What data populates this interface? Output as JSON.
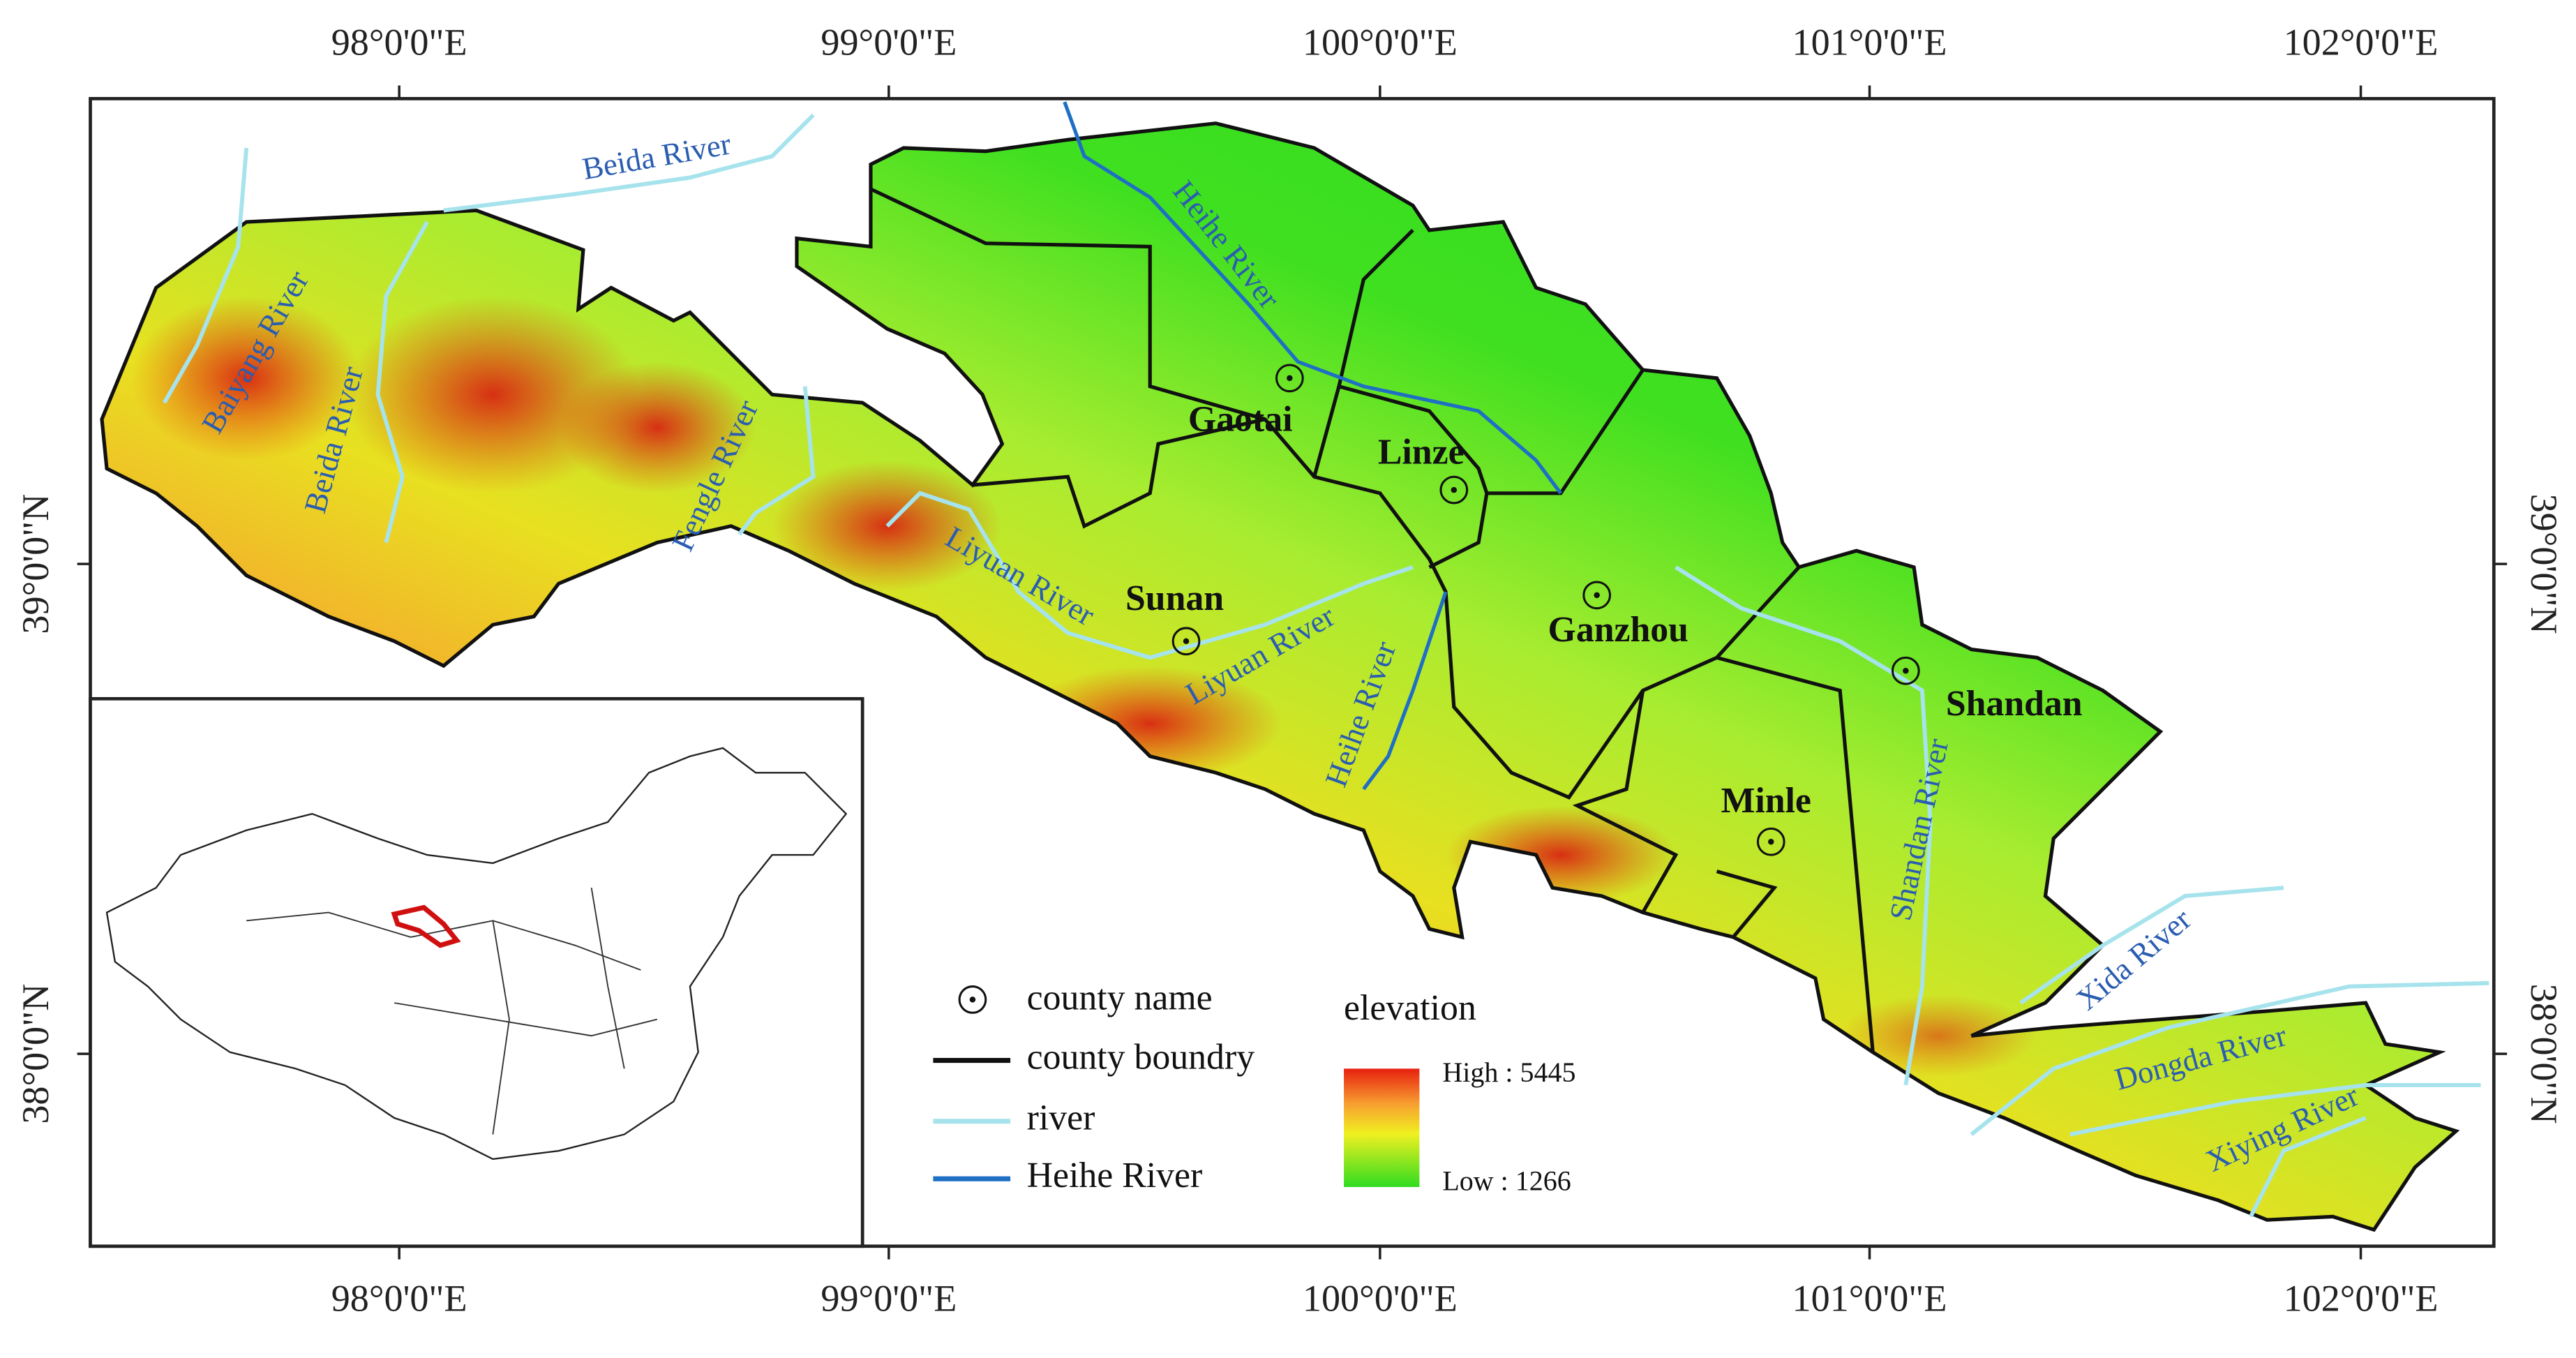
{
  "axes": {
    "longitude": [
      "98°0'0\"E",
      "99°0'0\"E",
      "100°0'0\"E",
      "101°0'0\"E",
      "102°0'0\"E"
    ],
    "latitude": [
      "39°0'0\"N",
      "38°0'0\"N"
    ]
  },
  "counties": [
    "Gaotai",
    "Linze",
    "Sunan",
    "Ganzhou",
    "Shandan",
    "Minle"
  ],
  "rivers": [
    "Beida River",
    "Baiyang River",
    "Beida River",
    "Fengle River",
    "Heihe River",
    "Liyuan River",
    "Liyuan River",
    "Heihe River",
    "Shandan River",
    "Xida River",
    "Dongda River",
    "Xiying River"
  ],
  "legend": {
    "county_name": "county name",
    "county_boundary": "county boundry",
    "river": "river",
    "heihe_river": "Heihe River",
    "elevation": "elevation",
    "high": "High : 5445",
    "low": "Low : 1266"
  }
}
